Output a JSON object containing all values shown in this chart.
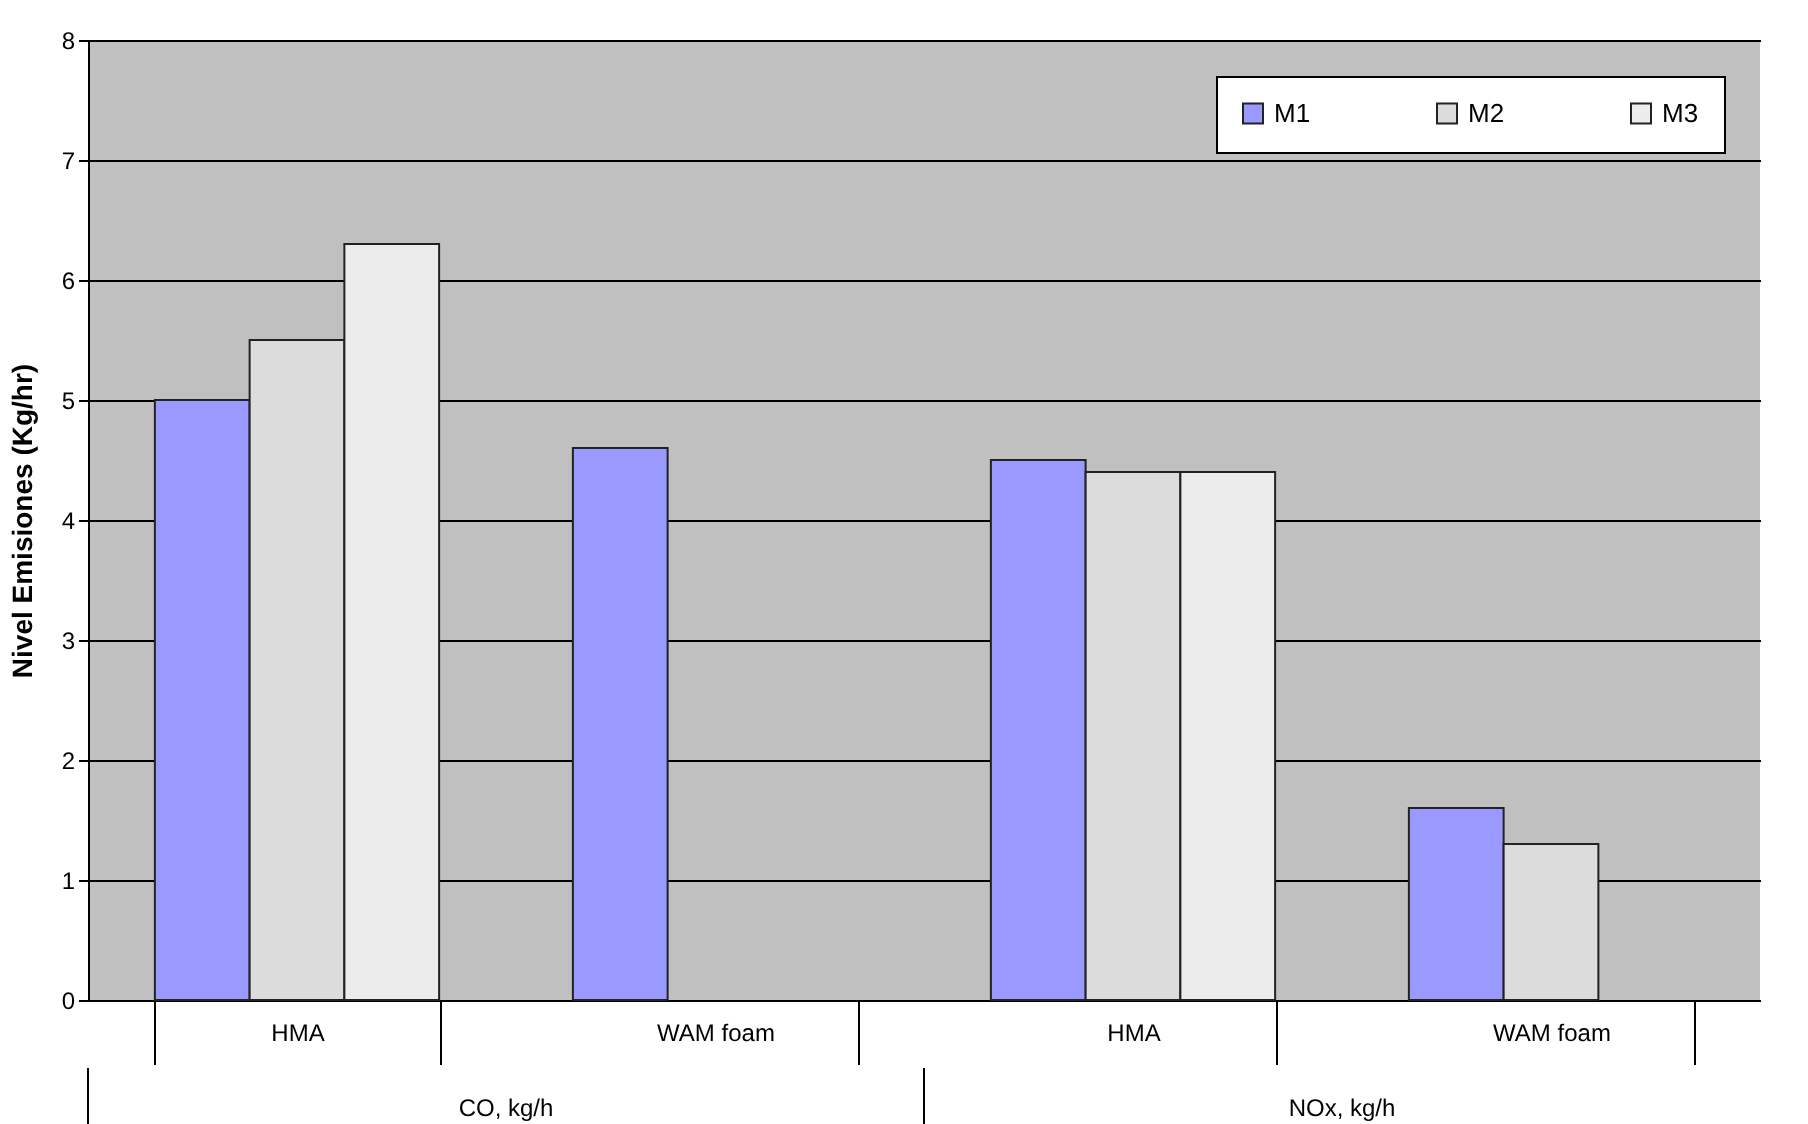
{
  "chart_data": {
    "type": "bar",
    "ylabel": "Nivel Emisiones (Kg/hr)",
    "categories": [
      "HMA",
      "WAM foam",
      "HMA",
      "WAM foam"
    ],
    "series": [
      {
        "name": "M1",
        "color": "#9999ff",
        "values": [
          5.0,
          4.6,
          4.5,
          1.6
        ]
      },
      {
        "name": "M2",
        "color": "#dcdcdc",
        "values": [
          5.5,
          null,
          4.4,
          1.3
        ]
      },
      {
        "name": "M3",
        "color": "#ececec",
        "values": [
          6.3,
          null,
          4.4,
          null
        ]
      }
    ],
    "ylim": [
      0,
      8
    ],
    "yticks": [
      0,
      1,
      2,
      3,
      4,
      5,
      6,
      7,
      8
    ],
    "grid": "y",
    "legend": "top right",
    "annotations": [
      "CO, kg/h",
      "NOx, kg/h"
    ]
  }
}
